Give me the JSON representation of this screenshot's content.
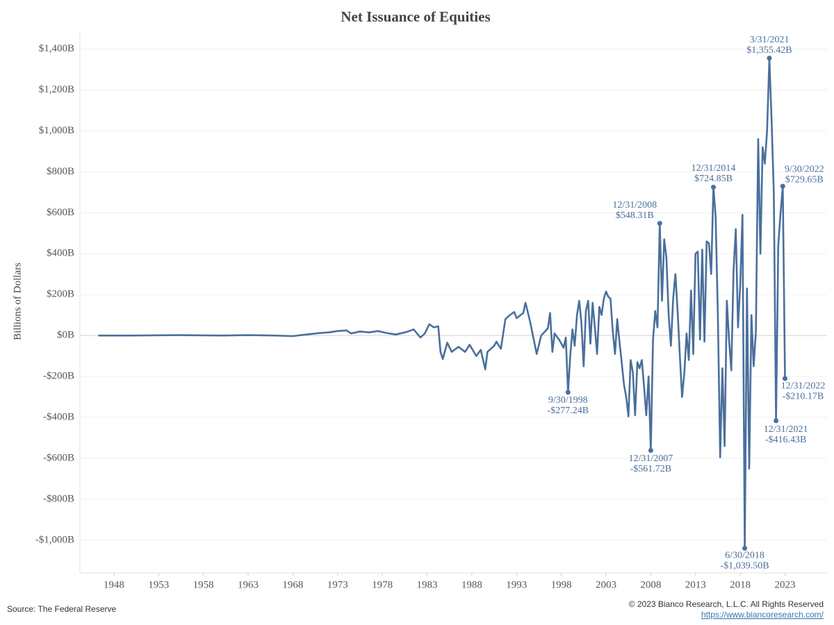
{
  "chart_data": {
    "type": "line",
    "title": "Net Issuance of Equities",
    "y_label": "Billions of Dollars",
    "source": "Source: The Federal Reserve",
    "copyright": "© 2023 Bianco Research, L.L.C. All Rights Reserved",
    "url": "https://www.biancoresearch.com/",
    "xlim": [
      1944.2,
      2027.7
    ],
    "ylim": [
      -1160,
      1480
    ],
    "xticks": [
      1948,
      1953,
      1958,
      1963,
      1968,
      1973,
      1978,
      1983,
      1988,
      1993,
      1998,
      2003,
      2008,
      2013,
      2018,
      2023
    ],
    "yticks": [
      {
        "value": -1000,
        "label": "-$1,000B"
      },
      {
        "value": -800,
        "label": "-$800B"
      },
      {
        "value": -600,
        "label": "-$600B"
      },
      {
        "value": -400,
        "label": "-$400B"
      },
      {
        "value": -200,
        "label": "-$200B"
      },
      {
        "value": 0,
        "label": "$0B"
      },
      {
        "value": 200,
        "label": "$200B"
      },
      {
        "value": 400,
        "label": "$400B"
      },
      {
        "value": 600,
        "label": "$600B"
      },
      {
        "value": 800,
        "label": "$800B"
      },
      {
        "value": 1000,
        "label": "$1,000B"
      },
      {
        "value": 1200,
        "label": "$1,200B"
      },
      {
        "value": 1400,
        "label": "$1,400B"
      }
    ],
    "grid": true,
    "series": [
      {
        "name": "Net Issuance of Equities",
        "color": "#4a6f9c",
        "x": [
          1946.25,
          1950,
          1955,
          1960,
          1963,
          1966,
          1968,
          1969.5,
          1971,
          1972,
          1973,
          1974,
          1974.5,
          1975.5,
          1976.5,
          1977.5,
          1978.5,
          1979.5,
          1980.5,
          1981,
          1981.5,
          1982.25,
          1982.75,
          1983.25,
          1983.75,
          1984.25,
          1984.5,
          1984.75,
          1985.25,
          1985.75,
          1986.5,
          1987.25,
          1987.75,
          1988.5,
          1989,
          1989.5,
          1989.75,
          1990.5,
          1990.75,
          1991.25,
          1991.75,
          1992.25,
          1992.75,
          1993,
          1993.75,
          1994,
          1994.5,
          1995.25,
          1995.75,
          1996.5,
          1996.75,
          1997,
          1997.25,
          1997.75,
          1998.25,
          1998.5,
          1998.75,
          1999,
          1999.25,
          1999.5,
          1999.75,
          2000,
          2000.25,
          2000.5,
          2000.75,
          2001,
          2001.25,
          2001.5,
          2001.75,
          2002,
          2002.25,
          2002.5,
          2002.75,
          2003,
          2003.25,
          2003.5,
          2003.75,
          2004,
          2004.25,
          2004.5,
          2004.75,
          2005,
          2005.25,
          2005.5,
          2005.75,
          2006,
          2006.25,
          2006.5,
          2006.75,
          2007,
          2007.25,
          2007.5,
          2007.75,
          2008,
          2008.25,
          2008.5,
          2008.75,
          2009,
          2009.25,
          2009.5,
          2009.75,
          2010,
          2010.25,
          2010.5,
          2010.75,
          2011,
          2011.25,
          2011.5,
          2011.75,
          2012,
          2012.25,
          2012.5,
          2012.75,
          2013,
          2013.25,
          2013.5,
          2013.75,
          2014,
          2014.25,
          2014.5,
          2014.75,
          2015,
          2015.25,
          2015.5,
          2015.75,
          2016,
          2016.25,
          2016.5,
          2016.75,
          2017,
          2017.25,
          2017.5,
          2017.75,
          2018,
          2018.25,
          2018.5,
          2018.75,
          2019,
          2019.25,
          2019.5,
          2019.75,
          2020,
          2020.25,
          2020.5,
          2020.75,
          2021,
          2021.25,
          2021.5,
          2021.75,
          2022,
          2022.25,
          2022.5,
          2022.75,
          2023
        ],
        "values": [
          0,
          0,
          2,
          0,
          2,
          0,
          -3,
          5,
          12,
          15,
          22,
          25,
          10,
          20,
          15,
          22,
          12,
          5,
          15,
          22,
          30,
          -10,
          10,
          55,
          40,
          45,
          -80,
          -115,
          -35,
          -80,
          -55,
          -80,
          -45,
          -100,
          -70,
          -165,
          -80,
          -50,
          -30,
          -65,
          80,
          100,
          115,
          85,
          110,
          160,
          70,
          -90,
          0,
          35,
          110,
          -80,
          10,
          -20,
          -60,
          -10,
          -277.24,
          -100,
          30,
          -50,
          100,
          170,
          60,
          -150,
          120,
          170,
          -40,
          160,
          40,
          -90,
          140,
          100,
          180,
          215,
          190,
          180,
          20,
          -90,
          80,
          -30,
          -130,
          -240,
          -300,
          -395,
          -120,
          -180,
          -390,
          -130,
          -160,
          -120,
          -250,
          -390,
          -200,
          -561.72,
          -20,
          120,
          40,
          548.31,
          170,
          470,
          380,
          100,
          -50,
          180,
          300,
          120,
          -100,
          -300,
          -180,
          10,
          -120,
          220,
          -90,
          400,
          410,
          -20,
          420,
          -30,
          460,
          450,
          300,
          724.85,
          580,
          100,
          -595,
          -160,
          -540,
          170,
          -20,
          -170,
          320,
          520,
          40,
          250,
          590,
          -1039.5,
          230,
          -650,
          100,
          -150,
          20,
          960,
          400,
          920,
          840,
          1000,
          1355.42,
          1050,
          700,
          -416.43,
          440,
          600,
          729.65,
          -210.17
        ]
      }
    ],
    "annotations": [
      {
        "label": "3/31/2021",
        "value_label": "$1,355.42B",
        "x": 2021.25,
        "y": 1355.42
      },
      {
        "label": "12/31/2014",
        "value_label": "$724.85B",
        "x": 2015,
        "y": 724.85
      },
      {
        "label": "12/31/2008",
        "value_label": "$548.31B",
        "x": 2009,
        "y": 548.31
      },
      {
        "label": "9/30/2022",
        "value_label": "$729.65B",
        "x": 2022.75,
        "y": 729.65
      },
      {
        "label": "9/30/1998",
        "value_label": "-$277.24B",
        "x": 1998.75,
        "y": -277.24
      },
      {
        "label": "12/31/2007",
        "value_label": "-$561.72B",
        "x": 2008,
        "y": -561.72
      },
      {
        "label": "12/31/2022",
        "value_label": "-$210.17B",
        "x": 2023,
        "y": -210.17
      },
      {
        "label": "12/31/2021",
        "value_label": "-$416.43B",
        "x": 2022,
        "y": -416.43
      },
      {
        "label": "6/30/2018",
        "value_label": "-$1,039.50B",
        "x": 2018.5,
        "y": -1039.5
      }
    ]
  }
}
